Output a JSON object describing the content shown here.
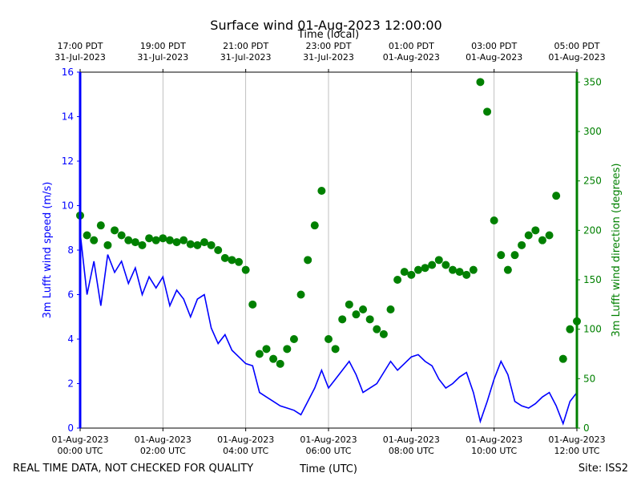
{
  "chart_data": {
    "type": "line_scatter",
    "title": "Surface wind 01-Aug-2023 12:00:00",
    "xlabel": "Time (UTC)",
    "top_xlabel": "Time (local)",
    "ylabel": "3m Lufft wind speed (m/s)",
    "y2label": "3m Lufft wind direction (degrees)",
    "footer_left": "REAL TIME DATA, NOT CHECKED FOR QUALITY",
    "footer_right": "Site: ISS2",
    "grid": true,
    "xlim": [
      "2023-08-01 00:00",
      "2023-08-01 12:00"
    ],
    "xticks": [
      {
        "value": "2023-08-01 00:00",
        "label": "01-Aug-2023\n00:00 UTC"
      },
      {
        "value": "2023-08-01 02:00",
        "label": "01-Aug-2023\n02:00 UTC"
      },
      {
        "value": "2023-08-01 04:00",
        "label": "01-Aug-2023\n04:00 UTC"
      },
      {
        "value": "2023-08-01 06:00",
        "label": "01-Aug-2023\n06:00 UTC"
      },
      {
        "value": "2023-08-01 08:00",
        "label": "01-Aug-2023\n08:00 UTC"
      },
      {
        "value": "2023-08-01 10:00",
        "label": "01-Aug-2023\n10:00 UTC"
      },
      {
        "value": "2023-08-01 12:00",
        "label": "01-Aug-2023\n12:00 UTC"
      }
    ],
    "top_xticks": [
      {
        "value": "2023-08-01 00:00",
        "label": "17:00 PDT\n31-Jul-2023"
      },
      {
        "value": "2023-08-01 02:00",
        "label": "19:00 PDT\n31-Jul-2023"
      },
      {
        "value": "2023-08-01 04:00",
        "label": "21:00 PDT\n31-Jul-2023"
      },
      {
        "value": "2023-08-01 06:00",
        "label": "23:00 PDT\n31-Jul-2023"
      },
      {
        "value": "2023-08-01 08:00",
        "label": "01:00 PDT\n01-Aug-2023"
      },
      {
        "value": "2023-08-01 10:00",
        "label": "03:00 PDT\n01-Aug-2023"
      },
      {
        "value": "2023-08-01 12:00",
        "label": "05:00 PDT\n01-Aug-2023"
      }
    ],
    "ylim": [
      0,
      16
    ],
    "yticks": [
      0,
      2,
      4,
      6,
      8,
      10,
      12,
      14,
      16
    ],
    "y2lim": [
      0,
      360
    ],
    "y2ticks": [
      0,
      50,
      100,
      150,
      200,
      250,
      300,
      350
    ],
    "x": [
      "2023-08-01 00:00",
      "2023-08-01 00:10",
      "2023-08-01 00:20",
      "2023-08-01 00:30",
      "2023-08-01 00:40",
      "2023-08-01 00:50",
      "2023-08-01 01:00",
      "2023-08-01 01:10",
      "2023-08-01 01:20",
      "2023-08-01 01:30",
      "2023-08-01 01:40",
      "2023-08-01 01:50",
      "2023-08-01 02:00",
      "2023-08-01 02:10",
      "2023-08-01 02:20",
      "2023-08-01 02:30",
      "2023-08-01 02:40",
      "2023-08-01 02:50",
      "2023-08-01 03:00",
      "2023-08-01 03:10",
      "2023-08-01 03:20",
      "2023-08-01 03:30",
      "2023-08-01 03:40",
      "2023-08-01 03:50",
      "2023-08-01 04:00",
      "2023-08-01 04:10",
      "2023-08-01 04:20",
      "2023-08-01 04:30",
      "2023-08-01 04:40",
      "2023-08-01 04:50",
      "2023-08-01 05:00",
      "2023-08-01 05:10",
      "2023-08-01 05:20",
      "2023-08-01 05:30",
      "2023-08-01 05:40",
      "2023-08-01 05:50",
      "2023-08-01 06:00",
      "2023-08-01 06:10",
      "2023-08-01 06:20",
      "2023-08-01 06:30",
      "2023-08-01 06:40",
      "2023-08-01 06:50",
      "2023-08-01 07:00",
      "2023-08-01 07:10",
      "2023-08-01 07:20",
      "2023-08-01 07:30",
      "2023-08-01 07:40",
      "2023-08-01 07:50",
      "2023-08-01 08:00",
      "2023-08-01 08:10",
      "2023-08-01 08:20",
      "2023-08-01 08:30",
      "2023-08-01 08:40",
      "2023-08-01 08:50",
      "2023-08-01 09:00",
      "2023-08-01 09:10",
      "2023-08-01 09:20",
      "2023-08-01 09:30",
      "2023-08-01 09:40",
      "2023-08-01 09:50",
      "2023-08-01 10:00",
      "2023-08-01 10:10",
      "2023-08-01 10:20",
      "2023-08-01 10:30",
      "2023-08-01 10:40",
      "2023-08-01 10:50",
      "2023-08-01 11:00",
      "2023-08-01 11:10",
      "2023-08-01 11:20",
      "2023-08-01 11:30",
      "2023-08-01 11:40",
      "2023-08-01 11:50",
      "2023-08-01 12:00"
    ],
    "series": [
      {
        "type": "line",
        "axis": "y",
        "color": "#0000ff",
        "values": [
          8.8,
          6.0,
          7.5,
          5.5,
          7.8,
          7.0,
          7.5,
          6.5,
          7.2,
          6.0,
          6.8,
          6.3,
          6.8,
          5.5,
          6.2,
          5.8,
          5.0,
          5.8,
          6.0,
          4.5,
          3.8,
          4.2,
          3.5,
          3.2,
          2.9,
          2.8,
          1.6,
          1.4,
          1.2,
          1.0,
          0.9,
          0.8,
          0.6,
          1.2,
          1.8,
          2.6,
          1.8,
          2.2,
          2.6,
          3.0,
          2.4,
          1.6,
          1.8,
          2.0,
          2.5,
          3.0,
          2.6,
          2.9,
          3.2,
          3.3,
          3.0,
          2.8,
          2.2,
          1.8,
          2.0,
          2.3,
          2.5,
          1.6,
          0.3,
          1.2,
          2.2,
          3.0,
          2.4,
          1.2,
          1.0,
          0.9,
          1.1,
          1.4,
          1.6,
          1.0,
          0.2,
          1.2,
          1.6
        ]
      },
      {
        "type": "scatter",
        "axis": "y2",
        "color": "#008000",
        "values": [
          215,
          195,
          190,
          205,
          185,
          200,
          195,
          190,
          188,
          185,
          192,
          190,
          192,
          190,
          188,
          190,
          186,
          185,
          188,
          185,
          180,
          172,
          170,
          168,
          160,
          125,
          75,
          80,
          70,
          65,
          80,
          90,
          135,
          170,
          205,
          240,
          90,
          80,
          110,
          125,
          115,
          120,
          110,
          100,
          95,
          120,
          150,
          158,
          155,
          160,
          162,
          165,
          170,
          165,
          160,
          158,
          155,
          160,
          350,
          320,
          210,
          175,
          160,
          175,
          185,
          195,
          200,
          190,
          195,
          235,
          70,
          100,
          108
        ]
      }
    ]
  }
}
